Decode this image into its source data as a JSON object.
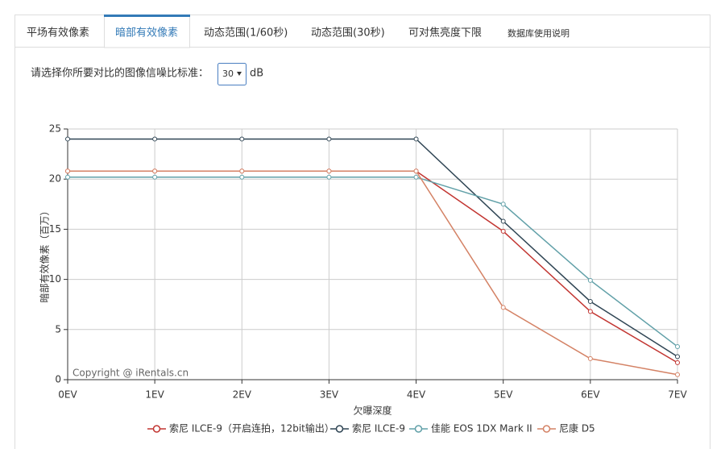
{
  "tabs": [
    "平场有效像素",
    "暗部有效像素",
    "动态范围(1/60秒)",
    "动态范围(30秒)",
    "可对焦亮度下限",
    "数据库使用说明"
  ],
  "prompt": "请选择你所要对比的图像信噪比标准：",
  "select_value": "30",
  "unit": "dB",
  "chart_data": {
    "type": "line",
    "x_label": "欠曝深度",
    "y_label": "暗部有效像素（百万）",
    "watermark": "Copyright @ iRentals.cn",
    "categories": [
      "0EV",
      "1EV",
      "2EV",
      "3EV",
      "4EV",
      "5EV",
      "6EV",
      "7EV"
    ],
    "ylim": [
      0,
      25
    ],
    "yticks": [
      0,
      5,
      10,
      15,
      20,
      25
    ],
    "grid": true,
    "series": [
      {
        "name": "索尼 ILCE-9（开启连拍，12bit输出）",
        "color": "#c23531",
        "values": [
          20.8,
          20.8,
          20.8,
          20.8,
          20.8,
          14.8,
          6.8,
          1.7
        ]
      },
      {
        "name": "索尼 ILCE-9",
        "color": "#2f4554",
        "values": [
          24,
          24,
          24,
          24,
          24,
          15.8,
          7.8,
          2.3
        ]
      },
      {
        "name": "佳能 EOS 1DX Mark II",
        "color": "#61a0a8",
        "values": [
          20.2,
          20.2,
          20.2,
          20.2,
          20.2,
          17.5,
          9.9,
          3.3
        ]
      },
      {
        "name": "尼康 D5",
        "color": "#d48265",
        "values": [
          20.8,
          20.8,
          20.8,
          20.8,
          20.8,
          7.2,
          2.1,
          0.5
        ]
      }
    ]
  }
}
